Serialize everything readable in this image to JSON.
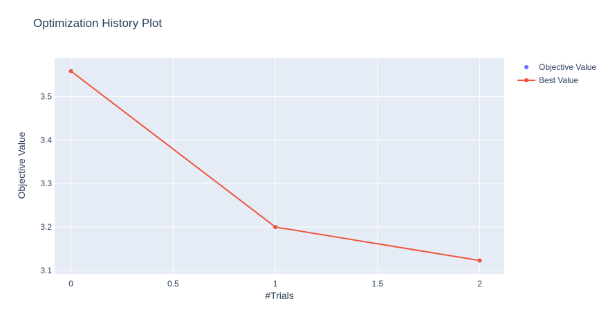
{
  "chart_data": {
    "type": "line",
    "title": "Optimization History Plot",
    "xlabel": "#Trials",
    "ylabel": "Objective Value",
    "xlim": [
      -0.08,
      2.12
    ],
    "ylim": [
      3.092,
      3.588
    ],
    "x_ticks": [
      0,
      0.5,
      1,
      1.5,
      2
    ],
    "x_tick_labels": [
      "0",
      "0.5",
      "1",
      "1.5",
      "2"
    ],
    "y_ticks": [
      3.1,
      3.2,
      3.3,
      3.4,
      3.5
    ],
    "y_tick_labels": [
      "3.1",
      "3.2",
      "3.3",
      "3.4",
      "3.5"
    ],
    "grid": true,
    "legend_position": "top-right",
    "series": [
      {
        "name": "Objective Value",
        "mode": "markers",
        "color": "#636efa",
        "x": [
          0,
          1,
          2
        ],
        "y": [
          3.558,
          3.2,
          3.123
        ]
      },
      {
        "name": "Best Value",
        "mode": "lines+markers",
        "color": "#ef553b",
        "x": [
          0,
          1,
          2
        ],
        "y": [
          3.558,
          3.2,
          3.123
        ]
      }
    ],
    "plot_bg": "#e5ecf6",
    "grid_color": "#ffffff"
  }
}
